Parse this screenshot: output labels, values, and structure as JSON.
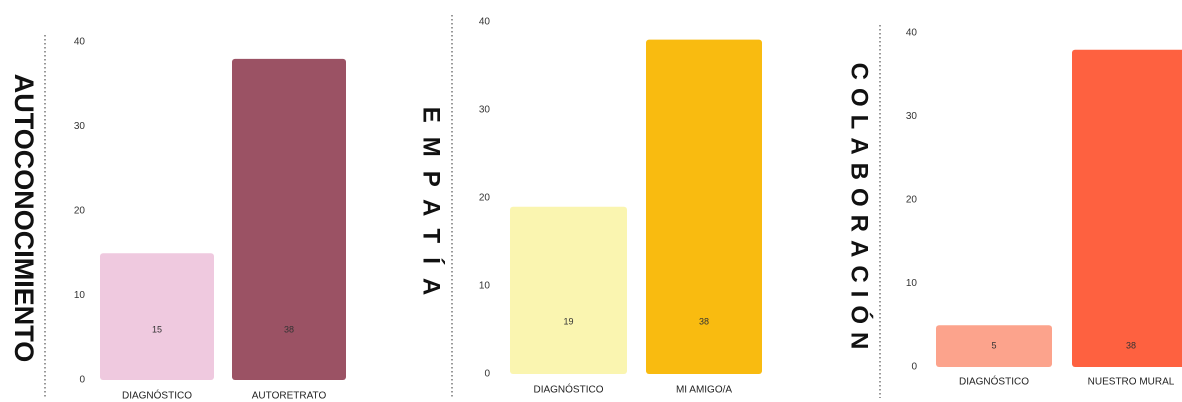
{
  "chart_data": [
    {
      "type": "bar",
      "title": "AUTOCONOCIMIENTO",
      "categories": [
        "DIAGNÓSTICO",
        "AUTORETRATO"
      ],
      "values": [
        15,
        38
      ],
      "colors": [
        "#efc9df",
        "#9b5264"
      ],
      "ylim": [
        0,
        40
      ],
      "yticks": [
        0,
        10,
        20,
        30,
        40
      ]
    },
    {
      "type": "bar",
      "title": "EMPATÍA",
      "categories": [
        "DIAGNÓSTICO",
        "MI AMIGO/A"
      ],
      "values": [
        19,
        38
      ],
      "colors": [
        "#faf5b0",
        "#f9bb10"
      ],
      "ylim": [
        0,
        40
      ],
      "yticks": [
        0,
        10,
        20,
        30,
        40
      ]
    },
    {
      "type": "bar",
      "title": "COLABORACIÓN",
      "categories": [
        "DIAGNÓSTICO",
        "NUESTRO MURAL"
      ],
      "values": [
        5,
        38
      ],
      "colors": [
        "#fca38c",
        "#fe6140"
      ],
      "ylim": [
        0,
        40
      ],
      "yticks": [
        0,
        10,
        20,
        30,
        40
      ]
    }
  ]
}
